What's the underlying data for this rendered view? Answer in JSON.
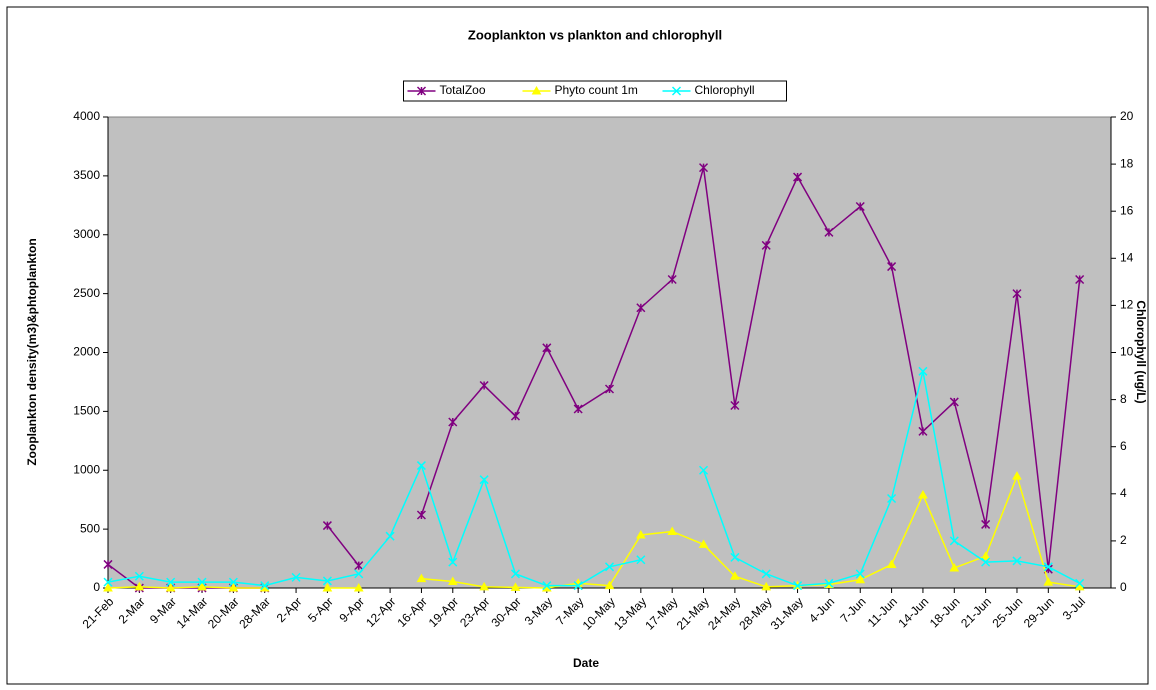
{
  "chart_data": {
    "type": "line",
    "title": "Zooplankton vs plankton and chlorophyll",
    "x_label": "Date",
    "y_label": "Zooplankton density(m3)&phtoplankton",
    "y2_label": "Chlorophyll (ug/L)",
    "categories": [
      "21-Feb",
      "2-Mar",
      "9-Mar",
      "14-Mar",
      "20-Mar",
      "28-Mar",
      "2-Apr",
      "5-Apr",
      "9-Apr",
      "12-Apr",
      "16-Apr",
      "19-Apr",
      "23-Apr",
      "30-Apr",
      "3-May",
      "7-May",
      "10-May",
      "13-May",
      "17-May",
      "21-May",
      "24-May",
      "28-May",
      "31-May",
      "4-Jun",
      "7-Jun",
      "11-Jun",
      "14-Jun",
      "18-Jun",
      "21-Jun",
      "25-Jun",
      "29-Jun",
      "3-Jul"
    ],
    "series": [
      {
        "name": "TotalZoo",
        "color": "#800080",
        "marker": "star",
        "values": [
          200,
          0,
          0,
          0,
          0,
          0,
          null,
          530,
          190,
          null,
          620,
          1410,
          1720,
          1460,
          2040,
          1520,
          1690,
          2380,
          2620,
          3570,
          1550,
          2910,
          3490,
          3020,
          3240,
          2730,
          1330,
          1580,
          540,
          2500,
          160,
          2620
        ]
      },
      {
        "name": "Phyto count 1m",
        "color": "#ffff00",
        "marker": "triangle",
        "values": [
          0,
          10,
          0,
          10,
          0,
          0,
          null,
          0,
          0,
          null,
          80,
          55,
          10,
          5,
          0,
          40,
          20,
          450,
          480,
          370,
          100,
          10,
          20,
          30,
          70,
          200,
          790,
          170,
          270,
          950,
          50,
          10
        ]
      },
      {
        "name": "Chlorophyll",
        "color": "#00ffff",
        "marker": "x",
        "axis": "y2",
        "values": [
          0.25,
          0.5,
          0.25,
          0.25,
          0.25,
          0.1,
          0.45,
          0.3,
          0.6,
          2.2,
          5.2,
          1.1,
          4.6,
          0.6,
          0.1,
          0.1,
          0.9,
          1.2,
          null,
          5.0,
          1.3,
          0.6,
          0.1,
          0.2,
          0.6,
          3.8,
          9.2,
          2.0,
          1.1,
          1.15,
          0.9,
          0.2
        ]
      }
    ],
    "ylim": [
      0,
      4000
    ],
    "yticks": [
      0,
      500,
      1000,
      1500,
      2000,
      2500,
      3000,
      3500,
      4000
    ],
    "y2lim": [
      0,
      20
    ],
    "y2ticks": [
      0,
      2,
      4,
      6,
      8,
      10,
      12,
      14,
      16,
      18,
      20
    ],
    "legend": "top",
    "plot_background": "#c0c0c0"
  }
}
